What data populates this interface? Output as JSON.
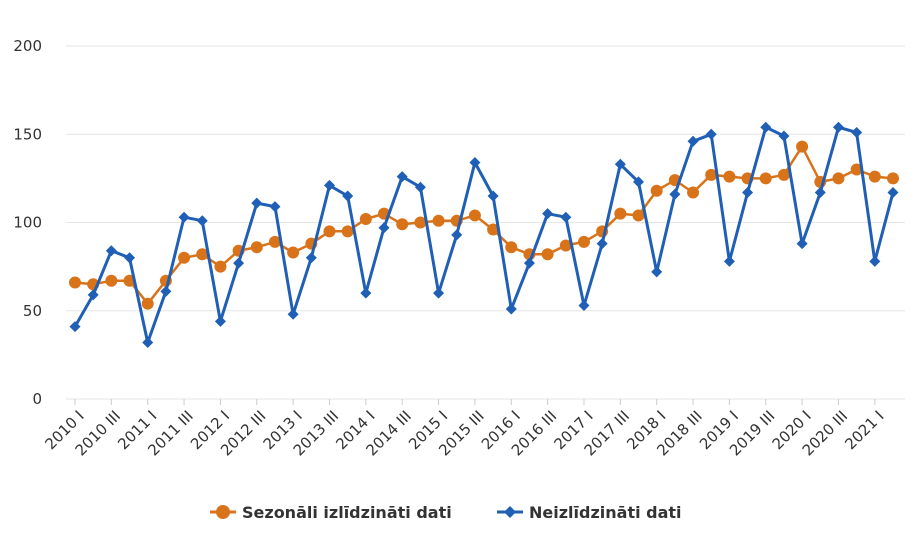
{
  "chart_data": {
    "type": "line",
    "title": "",
    "xlabel": "",
    "ylabel": "",
    "ylim": [
      0,
      200
    ],
    "yticks": [
      0,
      50,
      100,
      150,
      200
    ],
    "grid": true,
    "legend_position": "bottom-center",
    "x": [
      "2010 I",
      "2010 II",
      "2010 III",
      "2010 IV",
      "2011 I",
      "2011 II",
      "2011 III",
      "2011 IV",
      "2012 I",
      "2012 II",
      "2012 III",
      "2012 IV",
      "2013 I",
      "2013 II",
      "2013 III",
      "2013 IV",
      "2014 I",
      "2014 II",
      "2014 III",
      "2014 IV",
      "2015 I",
      "2015 II",
      "2015 III",
      "2015 IV",
      "2016 I",
      "2016 II",
      "2016 III",
      "2016 IV",
      "2017 I",
      "2017 II",
      "2017 III",
      "2017 IV",
      "2018 I",
      "2018 II",
      "2018 III",
      "2018 IV",
      "2019 I",
      "2019 II",
      "2019 III",
      "2019 IV",
      "2020 I",
      "2020 II",
      "2020 III",
      "2020 IV",
      "2021 I",
      "2021 II"
    ],
    "x_tick_labels": [
      "2010 I",
      "2010 III",
      "2011 I",
      "2011 III",
      "2012 I",
      "2012 III",
      "2013 I",
      "2013 III",
      "2014 I",
      "2014 III",
      "2015 I",
      "2015 III",
      "2016 I",
      "2016 III",
      "2017 I",
      "2017 III",
      "2018 I",
      "2018 III",
      "2019 I",
      "2019 III",
      "2020 I",
      "2020 III",
      "2021 I"
    ],
    "series": [
      {
        "name": "Sezonāli izlīdzināti dati",
        "color": "#d9731a",
        "marker": "circle",
        "values": [
          66,
          65,
          67,
          67,
          54,
          67,
          80,
          82,
          75,
          84,
          86,
          89,
          83,
          88,
          95,
          95,
          102,
          105,
          99,
          100,
          101,
          101,
          104,
          96,
          86,
          82,
          82,
          87,
          89,
          95,
          105,
          104,
          118,
          124,
          117,
          127,
          126,
          125,
          125,
          127,
          143,
          123,
          125,
          130,
          126,
          125
        ]
      },
      {
        "name": "Neizlīdzināti dati",
        "color": "#1f5fb5",
        "marker": "diamond",
        "values": [
          41,
          59,
          84,
          80,
          32,
          61,
          103,
          101,
          44,
          77,
          111,
          109,
          48,
          80,
          121,
          115,
          60,
          97,
          126,
          120,
          60,
          93,
          134,
          115,
          51,
          77,
          105,
          103,
          53,
          88,
          133,
          123,
          72,
          116,
          146,
          150,
          78,
          117,
          154,
          149,
          88,
          117,
          154,
          151,
          78,
          117
        ]
      }
    ]
  }
}
